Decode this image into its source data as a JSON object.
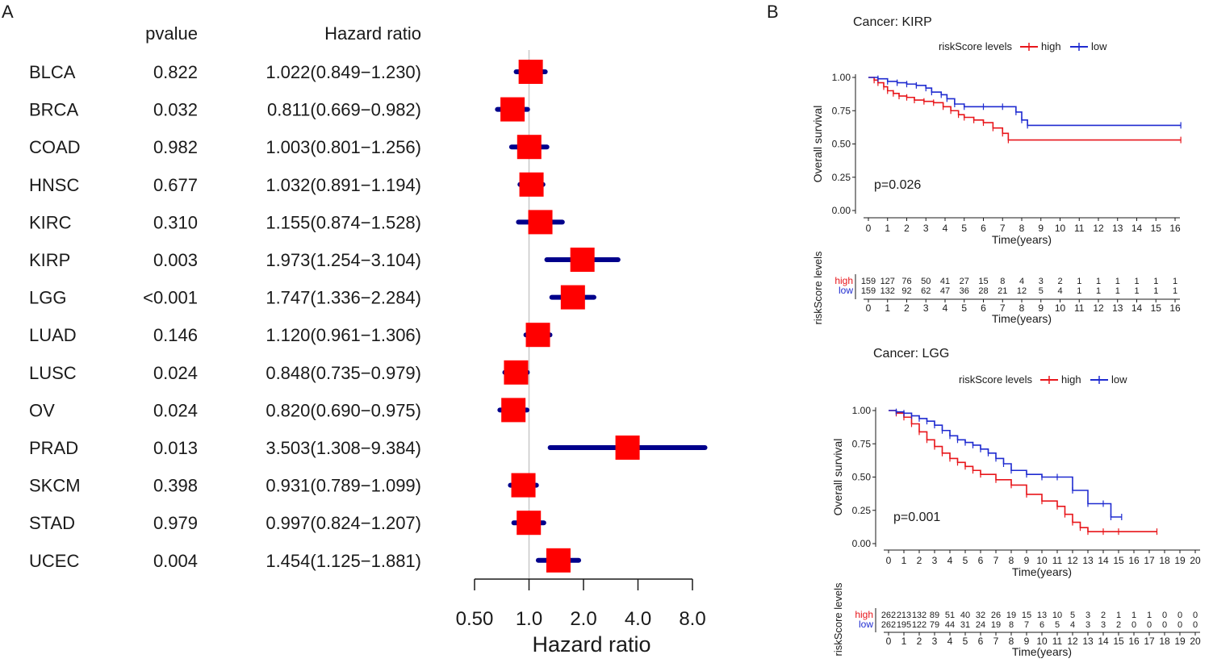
{
  "panel_labels": {
    "a": "A",
    "b": "B"
  },
  "chart_data": [
    {
      "type": "forest",
      "title": "",
      "col_headers": {
        "pvalue": "pvalue",
        "hr": "Hazard ratio"
      },
      "xlabel": "Hazard ratio",
      "xscale": "log2",
      "xlim": [
        0.5,
        8.5
      ],
      "xticks": [
        0.5,
        1,
        2,
        4,
        8
      ],
      "xtick_labels": [
        "0.50",
        "1.0",
        "2.0",
        "4.0",
        "8.0"
      ],
      "reference_line": 1,
      "rows": [
        {
          "label": "BLCA",
          "pvalue": "0.822",
          "hr_text": "1.022(0.849−1.230)",
          "hr": 1.022,
          "lo": 0.849,
          "hi": 1.23
        },
        {
          "label": "BRCA",
          "pvalue": "0.032",
          "hr_text": "0.811(0.669−0.982)",
          "hr": 0.811,
          "lo": 0.669,
          "hi": 0.982
        },
        {
          "label": "COAD",
          "pvalue": "0.982",
          "hr_text": "1.003(0.801−1.256)",
          "hr": 1.003,
          "lo": 0.801,
          "hi": 1.256
        },
        {
          "label": "HNSC",
          "pvalue": "0.677",
          "hr_text": "1.032(0.891−1.194)",
          "hr": 1.032,
          "lo": 0.891,
          "hi": 1.194
        },
        {
          "label": "KIRC",
          "pvalue": "0.310",
          "hr_text": "1.155(0.874−1.528)",
          "hr": 1.155,
          "lo": 0.874,
          "hi": 1.528
        },
        {
          "label": "KIRP",
          "pvalue": "0.003",
          "hr_text": "1.973(1.254−3.104)",
          "hr": 1.973,
          "lo": 1.254,
          "hi": 3.104
        },
        {
          "label": "LGG",
          "pvalue": "<0.001",
          "hr_text": "1.747(1.336−2.284)",
          "hr": 1.747,
          "lo": 1.336,
          "hi": 2.284
        },
        {
          "label": "LUAD",
          "pvalue": "0.146",
          "hr_text": "1.120(0.961−1.306)",
          "hr": 1.12,
          "lo": 0.961,
          "hi": 1.306
        },
        {
          "label": "LUSC",
          "pvalue": "0.024",
          "hr_text": "0.848(0.735−0.979)",
          "hr": 0.848,
          "lo": 0.735,
          "hi": 0.979
        },
        {
          "label": "OV",
          "pvalue": "0.024",
          "hr_text": "0.820(0.690−0.975)",
          "hr": 0.82,
          "lo": 0.69,
          "hi": 0.975
        },
        {
          "label": "PRAD",
          "pvalue": "0.013",
          "hr_text": "3.503(1.308−9.384)",
          "hr": 3.503,
          "lo": 1.308,
          "hi": 9.384
        },
        {
          "label": "SKCM",
          "pvalue": "0.398",
          "hr_text": "0.931(0.789−1.099)",
          "hr": 0.931,
          "lo": 0.789,
          "hi": 1.099
        },
        {
          "label": "STAD",
          "pvalue": "0.979",
          "hr_text": "0.997(0.824−1.207)",
          "hr": 0.997,
          "lo": 0.824,
          "hi": 1.207
        },
        {
          "label": "UCEC",
          "pvalue": "0.004",
          "hr_text": "1.454(1.125−1.881)",
          "hr": 1.454,
          "lo": 1.125,
          "hi": 1.881
        }
      ],
      "colors": {
        "box": "#ff0000",
        "ci": "#00008b",
        "ref": "#c8c8c8"
      }
    },
    {
      "type": "line",
      "subtype": "kaplan-meier",
      "title": "Cancer: KIRP",
      "legend_title": "riskScore levels",
      "xlabel": "Time(years)",
      "ylabel": "Overall survival",
      "xlim": [
        0,
        16
      ],
      "ylim": [
        0,
        1
      ],
      "xticks": [
        0,
        1,
        2,
        3,
        4,
        5,
        6,
        7,
        8,
        9,
        10,
        11,
        12,
        13,
        14,
        15,
        16
      ],
      "yticks": [
        0,
        0.25,
        0.5,
        0.75,
        1.0
      ],
      "ytick_labels": [
        "0.00",
        "0.25",
        "0.50",
        "0.75",
        "1.00"
      ],
      "pvalue_text": "p=0.026",
      "series": [
        {
          "name": "high",
          "color": "#e8161b",
          "x": [
            0,
            0.3,
            0.5,
            0.8,
            1.0,
            1.3,
            1.6,
            2.0,
            2.4,
            2.9,
            3.4,
            3.9,
            4.3,
            4.7,
            5.0,
            5.5,
            6.0,
            6.5,
            7.0,
            7.3,
            16.3
          ],
          "y": [
            1.0,
            0.98,
            0.96,
            0.93,
            0.9,
            0.88,
            0.86,
            0.85,
            0.83,
            0.82,
            0.81,
            0.78,
            0.75,
            0.72,
            0.7,
            0.68,
            0.66,
            0.62,
            0.58,
            0.53,
            0.53
          ]
        },
        {
          "name": "low",
          "color": "#1f2bd0",
          "x": [
            0,
            0.5,
            1.0,
            1.5,
            2.0,
            2.5,
            3.0,
            3.3,
            3.8,
            4.1,
            4.5,
            5.0,
            6.0,
            7.0,
            7.7,
            8.0,
            8.3,
            16.3
          ],
          "y": [
            1.0,
            0.99,
            0.97,
            0.96,
            0.95,
            0.94,
            0.92,
            0.89,
            0.87,
            0.84,
            0.8,
            0.78,
            0.78,
            0.78,
            0.74,
            0.68,
            0.64,
            0.64
          ]
        }
      ],
      "risk_table": {
        "ylabel": "riskScore levels",
        "xlabel": "Time(years)",
        "rows": [
          {
            "name": "high",
            "color": "#e8161b",
            "values": [
              "159",
              "127",
              "76",
              "50",
              "41",
              "27",
              "15",
              "8",
              "4",
              "3",
              "2",
              "1",
              "1",
              "1",
              "1",
              "1",
              "1"
            ]
          },
          {
            "name": "low",
            "color": "#1f2bd0",
            "values": [
              "159",
              "132",
              "92",
              "62",
              "47",
              "36",
              "28",
              "21",
              "12",
              "5",
              "4",
              "1",
              "1",
              "1",
              "1",
              "1",
              "1"
            ]
          }
        ]
      }
    },
    {
      "type": "line",
      "subtype": "kaplan-meier",
      "title": "Cancer: LGG",
      "legend_title": "riskScore levels",
      "xlabel": "Time(years)",
      "ylabel": "Overall survival",
      "xlim": [
        0,
        20
      ],
      "ylim": [
        0,
        1
      ],
      "xticks": [
        0,
        1,
        2,
        3,
        4,
        5,
        6,
        7,
        8,
        9,
        10,
        11,
        12,
        13,
        14,
        15,
        16,
        17,
        18,
        19,
        20
      ],
      "yticks": [
        0,
        0.25,
        0.5,
        0.75,
        1.0
      ],
      "ytick_labels": [
        "0.00",
        "0.25",
        "0.50",
        "0.75",
        "1.00"
      ],
      "pvalue_text": "p=0.001",
      "series": [
        {
          "name": "high",
          "color": "#e8161b",
          "x": [
            0,
            0.5,
            1.0,
            1.5,
            2.0,
            2.5,
            3.0,
            3.5,
            4.0,
            4.5,
            5.0,
            5.5,
            6.0,
            7.0,
            8.0,
            9.0,
            10.0,
            11.0,
            11.5,
            12.0,
            12.5,
            13.0,
            14.0,
            15.0,
            17.5
          ],
          "y": [
            1.0,
            0.98,
            0.95,
            0.9,
            0.84,
            0.78,
            0.73,
            0.68,
            0.64,
            0.61,
            0.58,
            0.55,
            0.52,
            0.48,
            0.44,
            0.37,
            0.32,
            0.28,
            0.22,
            0.16,
            0.12,
            0.09,
            0.09,
            0.09,
            0.09
          ]
        },
        {
          "name": "low",
          "color": "#1f2bd0",
          "x": [
            0,
            0.5,
            1.0,
            1.5,
            2.0,
            2.5,
            3.0,
            3.5,
            4.0,
            4.5,
            5.0,
            5.5,
            6.0,
            6.5,
            7.0,
            7.5,
            8.0,
            9.0,
            10.0,
            11.0,
            12.0,
            13.0,
            14.0,
            14.5,
            15.2
          ],
          "y": [
            1.0,
            0.99,
            0.98,
            0.96,
            0.94,
            0.92,
            0.89,
            0.85,
            0.81,
            0.78,
            0.76,
            0.74,
            0.71,
            0.68,
            0.64,
            0.6,
            0.55,
            0.52,
            0.5,
            0.5,
            0.4,
            0.3,
            0.3,
            0.2,
            0.2
          ]
        }
      ],
      "risk_table": {
        "ylabel": "riskScore levels",
        "xlabel": "Time(years)",
        "rows": [
          {
            "name": "high",
            "color": "#e8161b",
            "values": [
              "262",
              "213",
              "132",
              "89",
              "51",
              "40",
              "32",
              "26",
              "19",
              "15",
              "13",
              "10",
              "5",
              "3",
              "2",
              "1",
              "1",
              "1",
              "0",
              "0",
              "0"
            ]
          },
          {
            "name": "low",
            "color": "#1f2bd0",
            "values": [
              "262",
              "195",
              "122",
              "79",
              "44",
              "31",
              "24",
              "19",
              "8",
              "7",
              "6",
              "5",
              "4",
              "3",
              "3",
              "2",
              "0",
              "0",
              "0",
              "0",
              "0"
            ]
          }
        ]
      }
    }
  ]
}
